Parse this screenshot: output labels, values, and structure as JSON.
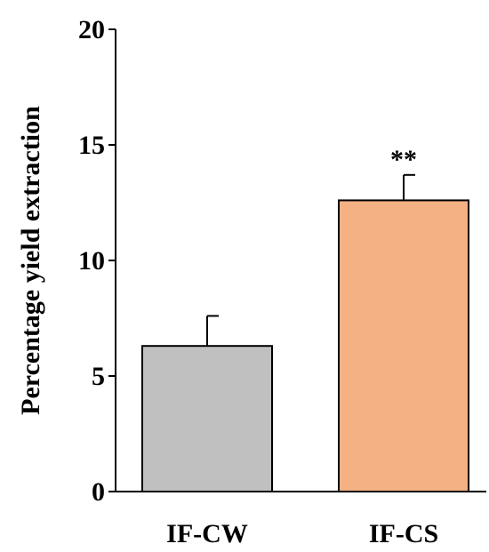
{
  "chart_data": {
    "type": "bar",
    "title": "",
    "xlabel": "",
    "ylabel": "Percentage yield extraction",
    "ylim": [
      0,
      20
    ],
    "yticks": [
      0,
      5,
      10,
      15,
      20
    ],
    "grid": false,
    "categories": [
      "IF-CW",
      "IF-CS"
    ],
    "values": [
      6.3,
      12.6
    ],
    "errors": [
      1.3,
      1.1
    ],
    "colors": [
      "#c0c0c0",
      "#f4b183"
    ],
    "annotations": [
      "",
      "**"
    ]
  }
}
